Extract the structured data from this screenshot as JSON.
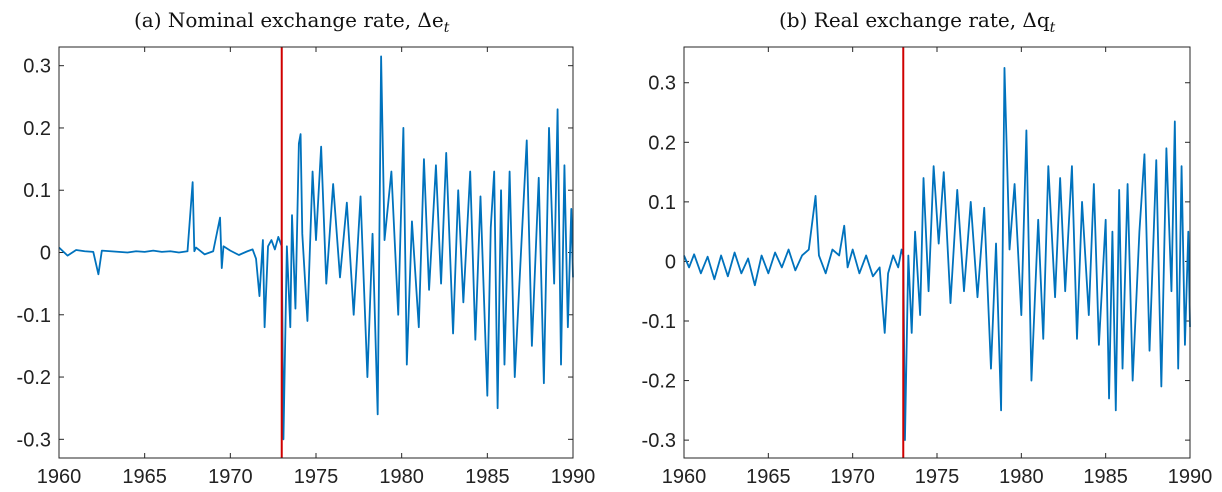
{
  "chart_data": [
    {
      "type": "line",
      "title": "(a) Nominal exchange rate, Δe",
      "title_subscript": "t",
      "x_ticks": [
        "1960",
        "1965",
        "1970",
        "1975",
        "1980",
        "1985",
        "1990"
      ],
      "y_ticks": [
        "0.3",
        "0.2",
        "0.1",
        "0",
        "-0.1",
        "-0.2",
        "-0.3"
      ],
      "xlim": [
        1960,
        1990
      ],
      "ylim": [
        -0.33,
        0.33
      ],
      "vline_x": 1973.0,
      "colors": {
        "series": "#0072BD",
        "vline": "#D00000"
      },
      "series": [
        {
          "x": [
            1960.0,
            1960.5,
            1961.0,
            1961.5,
            1962.0,
            1962.3,
            1962.5,
            1963.0,
            1963.5,
            1964.0,
            1964.5,
            1965.0,
            1965.5,
            1966.0,
            1966.5,
            1967.0,
            1967.5,
            1967.8,
            1967.9,
            1968.0,
            1968.5,
            1969.0,
            1969.4,
            1969.5,
            1969.6,
            1970.0,
            1970.5,
            1971.0,
            1971.3,
            1971.5,
            1971.7,
            1971.9,
            1972.0,
            1972.2,
            1972.4,
            1972.6,
            1972.8,
            1973.0,
            1973.1,
            1973.3,
            1973.5,
            1973.6,
            1973.8,
            1974.0,
            1974.1,
            1974.2,
            1974.5,
            1974.8,
            1975.0,
            1975.3,
            1975.6,
            1976.0,
            1976.4,
            1976.8,
            1977.2,
            1977.6,
            1978.0,
            1978.3,
            1978.6,
            1978.8,
            1979.0,
            1979.4,
            1979.8,
            1980.1,
            1980.3,
            1980.6,
            1981.0,
            1981.3,
            1981.6,
            1982.0,
            1982.3,
            1982.6,
            1983.0,
            1983.3,
            1983.6,
            1984.0,
            1984.3,
            1984.6,
            1985.0,
            1985.2,
            1985.4,
            1985.6,
            1985.8,
            1986.0,
            1986.3,
            1986.6,
            1987.0,
            1987.3,
            1987.6,
            1988.0,
            1988.3,
            1988.6,
            1988.9,
            1989.1,
            1989.3,
            1989.5,
            1989.7,
            1989.9,
            1990.0
          ],
          "y": [
            0.008,
            -0.005,
            0.004,
            0.002,
            0.001,
            -0.035,
            0.003,
            0.002,
            0.001,
            0.0,
            0.002,
            0.001,
            0.003,
            0.001,
            0.002,
            0.0,
            0.002,
            0.113,
            0.002,
            0.008,
            -0.003,
            0.002,
            0.056,
            -0.025,
            0.01,
            0.003,
            -0.004,
            0.002,
            0.005,
            -0.01,
            -0.07,
            0.02,
            -0.12,
            0.01,
            0.02,
            0.005,
            0.025,
            0.01,
            -0.3,
            0.01,
            -0.12,
            0.06,
            -0.09,
            0.175,
            0.19,
            0.03,
            -0.11,
            0.13,
            0.02,
            0.17,
            -0.05,
            0.11,
            -0.04,
            0.08,
            -0.1,
            0.09,
            -0.2,
            0.03,
            -0.26,
            0.315,
            0.02,
            0.13,
            -0.1,
            0.2,
            -0.18,
            0.05,
            -0.12,
            0.15,
            -0.06,
            0.14,
            -0.05,
            0.16,
            -0.13,
            0.1,
            -0.08,
            0.13,
            -0.14,
            0.09,
            -0.23,
            0.04,
            0.13,
            -0.25,
            0.1,
            -0.18,
            0.13,
            -0.2,
            0.02,
            0.18,
            -0.15,
            0.12,
            -0.21,
            0.2,
            -0.05,
            0.23,
            -0.18,
            0.14,
            -0.12,
            0.07,
            -0.04
          ]
        }
      ]
    },
    {
      "type": "line",
      "title": "(b) Real exchange rate, Δq",
      "title_subscript": "t",
      "x_ticks": [
        "1960",
        "1965",
        "1970",
        "1975",
        "1980",
        "1985",
        "1990"
      ],
      "y_ticks": [
        "0.3",
        "0.2",
        "0.1",
        "0",
        "-0.1",
        "-0.2",
        "-0.3"
      ],
      "xlim": [
        1960,
        1990
      ],
      "ylim": [
        -0.33,
        0.36
      ],
      "vline_x": 1973.0,
      "colors": {
        "series": "#0072BD",
        "vline": "#D00000"
      },
      "series": [
        {
          "x": [
            1960.0,
            1960.3,
            1960.6,
            1961.0,
            1961.4,
            1961.8,
            1962.2,
            1962.6,
            1963.0,
            1963.4,
            1963.8,
            1964.2,
            1964.6,
            1965.0,
            1965.4,
            1965.8,
            1966.2,
            1966.6,
            1967.0,
            1967.4,
            1967.8,
            1968.0,
            1968.4,
            1968.8,
            1969.2,
            1969.5,
            1969.7,
            1970.0,
            1970.4,
            1970.8,
            1971.2,
            1971.6,
            1971.9,
            1972.1,
            1972.4,
            1972.7,
            1972.9,
            1973.0,
            1973.1,
            1973.3,
            1973.5,
            1973.7,
            1974.0,
            1974.2,
            1974.5,
            1974.8,
            1975.1,
            1975.4,
            1975.8,
            1976.2,
            1976.6,
            1977.0,
            1977.4,
            1977.8,
            1978.2,
            1978.5,
            1978.8,
            1979.0,
            1979.3,
            1979.6,
            1980.0,
            1980.3,
            1980.6,
            1981.0,
            1981.3,
            1981.6,
            1982.0,
            1982.3,
            1982.6,
            1983.0,
            1983.3,
            1983.6,
            1984.0,
            1984.3,
            1984.6,
            1985.0,
            1985.2,
            1985.4,
            1985.6,
            1985.8,
            1986.0,
            1986.3,
            1986.6,
            1987.0,
            1987.3,
            1987.6,
            1988.0,
            1988.3,
            1988.6,
            1988.9,
            1989.1,
            1989.3,
            1989.5,
            1989.7,
            1989.9,
            1990.0
          ],
          "y": [
            0.01,
            -0.01,
            0.012,
            -0.02,
            0.008,
            -0.03,
            0.01,
            -0.025,
            0.015,
            -0.02,
            0.005,
            -0.04,
            0.01,
            -0.02,
            0.015,
            -0.01,
            0.02,
            -0.015,
            0.01,
            0.02,
            0.11,
            0.01,
            -0.02,
            0.02,
            0.01,
            0.06,
            -0.01,
            0.02,
            -0.02,
            0.01,
            -0.025,
            -0.01,
            -0.12,
            -0.02,
            0.01,
            -0.01,
            0.02,
            0.01,
            -0.3,
            0.01,
            -0.12,
            0.05,
            -0.09,
            0.14,
            -0.05,
            0.16,
            0.03,
            0.15,
            -0.07,
            0.12,
            -0.05,
            0.1,
            -0.06,
            0.09,
            -0.18,
            0.03,
            -0.25,
            0.325,
            0.02,
            0.13,
            -0.09,
            0.22,
            -0.2,
            0.07,
            -0.13,
            0.16,
            -0.06,
            0.14,
            -0.05,
            0.16,
            -0.13,
            0.1,
            -0.09,
            0.13,
            -0.14,
            0.07,
            -0.23,
            0.05,
            -0.25,
            0.12,
            -0.18,
            0.13,
            -0.2,
            0.05,
            0.18,
            -0.15,
            0.17,
            -0.21,
            0.19,
            -0.05,
            0.235,
            -0.18,
            0.16,
            -0.14,
            0.05,
            -0.11
          ]
        }
      ]
    }
  ]
}
